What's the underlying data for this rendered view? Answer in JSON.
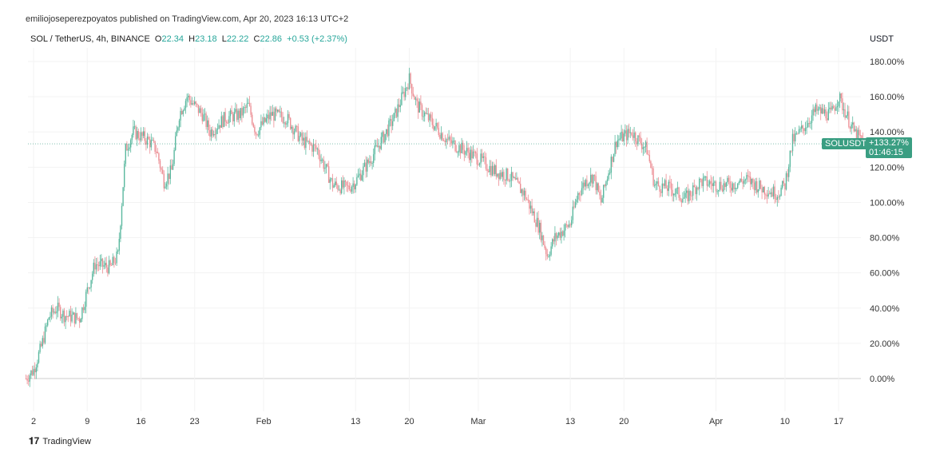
{
  "header": {
    "published": "emiliojoseperezpoyatos published on TradingView.com, Apr 20, 2023 16:13 UTC+2"
  },
  "legend": {
    "symbol": "SOL / TetherUS, 4h, BINANCE",
    "o_label": "O",
    "o": "22.34",
    "h_label": "H",
    "h": "23.18",
    "l_label": "L",
    "l": "22.22",
    "c_label": "C",
    "c": "22.86",
    "change": "+0.53 (+2.37%)"
  },
  "axis": {
    "unit": "USDT"
  },
  "price_tag": {
    "symbol": "SOLUSDT",
    "value": "+133.27%",
    "countdown": "01:46:15"
  },
  "footer": {
    "logo": "TradingView"
  },
  "colors": {
    "up": "#5bb89f",
    "down": "#ec8f95",
    "tag": "#3a9e82"
  },
  "chart_data": {
    "type": "candlestick",
    "interval": "4h",
    "scale": "percent",
    "ylim": [
      -15,
      190
    ],
    "y_ticks": [
      "180.00%",
      "160.00%",
      "140.00%",
      "120.00%",
      "100.00%",
      "80.00%",
      "60.00%",
      "40.00%",
      "20.00%",
      "0.00%"
    ],
    "y_tick_values": [
      180,
      160,
      140,
      120,
      100,
      80,
      60,
      40,
      20,
      0
    ],
    "x_ticks": [
      {
        "day": 1,
        "label": "2"
      },
      {
        "day": 8,
        "label": "9"
      },
      {
        "day": 15,
        "label": "16"
      },
      {
        "day": 22,
        "label": "23"
      },
      {
        "day": 31,
        "label": "Feb"
      },
      {
        "day": 43,
        "label": "13"
      },
      {
        "day": 50,
        "label": "20"
      },
      {
        "day": 59,
        "label": "Mar"
      },
      {
        "day": 71,
        "label": "13"
      },
      {
        "day": 78,
        "label": "20"
      },
      {
        "day": 90,
        "label": "Apr"
      },
      {
        "day": 99,
        "label": "10"
      },
      {
        "day": 106,
        "label": "17"
      }
    ],
    "xlim_days": [
      0,
      113
    ],
    "grid": true,
    "approx_close_path_percent": [
      [
        0,
        0
      ],
      [
        1,
        5
      ],
      [
        2,
        18
      ],
      [
        3,
        35
      ],
      [
        4,
        40
      ],
      [
        5,
        36
      ],
      [
        7,
        34
      ],
      [
        8,
        50
      ],
      [
        9,
        65
      ],
      [
        11,
        63
      ],
      [
        12,
        70
      ],
      [
        13,
        130
      ],
      [
        14,
        140
      ],
      [
        16,
        135
      ],
      [
        17,
        130
      ],
      [
        18,
        112
      ],
      [
        19,
        118
      ],
      [
        20,
        150
      ],
      [
        21,
        160
      ],
      [
        23,
        150
      ],
      [
        24,
        140
      ],
      [
        26,
        148
      ],
      [
        28,
        150
      ],
      [
        29,
        155
      ],
      [
        30,
        140
      ],
      [
        32,
        150
      ],
      [
        34,
        148
      ],
      [
        36,
        135
      ],
      [
        38,
        130
      ],
      [
        40,
        110
      ],
      [
        42,
        108
      ],
      [
        43,
        112
      ],
      [
        45,
        125
      ],
      [
        47,
        140
      ],
      [
        48,
        148
      ],
      [
        50,
        170
      ],
      [
        51,
        155
      ],
      [
        53,
        145
      ],
      [
        55,
        135
      ],
      [
        57,
        130
      ],
      [
        59,
        125
      ],
      [
        61,
        118
      ],
      [
        63,
        115
      ],
      [
        65,
        105
      ],
      [
        67,
        85
      ],
      [
        68,
        70
      ],
      [
        69,
        80
      ],
      [
        71,
        88
      ],
      [
        72,
        105
      ],
      [
        73,
        112
      ],
      [
        74,
        115
      ],
      [
        75,
        100
      ],
      [
        76,
        118
      ],
      [
        77,
        135
      ],
      [
        79,
        140
      ],
      [
        81,
        130
      ],
      [
        82,
        110
      ],
      [
        84,
        108
      ],
      [
        86,
        102
      ],
      [
        88,
        112
      ],
      [
        90,
        110
      ],
      [
        92,
        110
      ],
      [
        94,
        113
      ],
      [
        96,
        108
      ],
      [
        98,
        105
      ],
      [
        99,
        110
      ],
      [
        100,
        135
      ],
      [
        101,
        140
      ],
      [
        103,
        152
      ],
      [
        105,
        150
      ],
      [
        106,
        160
      ],
      [
        107,
        150
      ],
      [
        108,
        140
      ],
      [
        109.3,
        133.27
      ]
    ]
  }
}
